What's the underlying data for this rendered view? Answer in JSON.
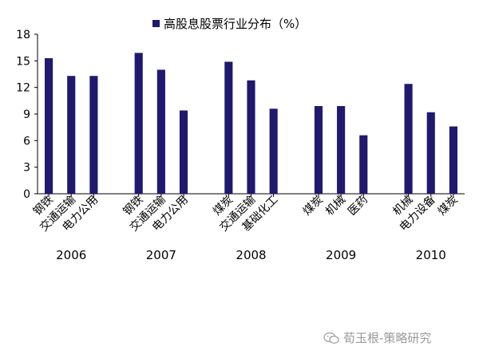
{
  "chart_data": {
    "type": "bar",
    "series": [
      {
        "name": "高股息股票行业分布（%）",
        "color": "#1f1a6e",
        "groups": [
          {
            "year": "2006",
            "items": [
              {
                "label": "钢铁",
                "value": 15.3
              },
              {
                "label": "交通运输",
                "value": 13.3
              },
              {
                "label": "电力公用",
                "value": 13.3
              }
            ]
          },
          {
            "year": "2007",
            "items": [
              {
                "label": "钢铁",
                "value": 15.9
              },
              {
                "label": "交通运输",
                "value": 14.0
              },
              {
                "label": "电力公用",
                "value": 9.4
              }
            ]
          },
          {
            "year": "2008",
            "items": [
              {
                "label": "煤炭",
                "value": 14.9
              },
              {
                "label": "交通运输",
                "value": 12.8
              },
              {
                "label": "基础化工",
                "value": 9.6
              }
            ]
          },
          {
            "year": "2009",
            "items": [
              {
                "label": "煤炭",
                "value": 9.9
              },
              {
                "label": "机械",
                "value": 9.9
              },
              {
                "label": "医药",
                "value": 6.6
              }
            ]
          },
          {
            "year": "2010",
            "items": [
              {
                "label": "机械",
                "value": 12.4
              },
              {
                "label": "电力设备",
                "value": 9.2
              },
              {
                "label": "煤炭",
                "value": 7.6
              }
            ]
          }
        ]
      }
    ],
    "yticks": [
      "0",
      "3",
      "6",
      "9",
      "12",
      "15",
      "18"
    ],
    "ylim": [
      0,
      18
    ],
    "grid": false,
    "legend_position": "top"
  },
  "watermark": {
    "text": "荀玉根-策略研究",
    "icon": "wechat-icon"
  }
}
